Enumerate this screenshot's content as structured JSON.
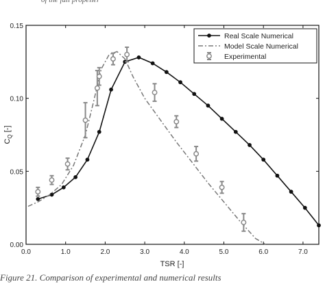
{
  "chart_data": {
    "type": "line",
    "xlabel": "TSR [-]",
    "ylabel_main": "C",
    "ylabel_sub": "Q",
    "ylabel_unit": " [-]",
    "xlim": [
      0,
      7.4
    ],
    "ylim": [
      0,
      0.15
    ],
    "xticks": [
      0.0,
      1.0,
      2.0,
      3.0,
      4.0,
      5.0,
      6.0,
      7.0
    ],
    "xtick_labels": [
      "0.0",
      "1.0",
      "2.0",
      "3.0",
      "4.0",
      "5.0",
      "6.0",
      "7.0"
    ],
    "yticks": [
      0.0,
      0.05,
      0.1,
      0.15
    ],
    "ytick_labels": [
      "0.00",
      "0.05",
      "0.10",
      "0.15"
    ],
    "grid": false,
    "legend_position": "top-right",
    "series": [
      {
        "name": "Real Scale Numerical",
        "style": "solid-marker",
        "color": "#111111",
        "x": [
          0.3,
          0.65,
          0.95,
          1.25,
          1.55,
          1.85,
          2.15,
          2.5,
          2.85,
          3.2,
          3.55,
          3.9,
          4.25,
          4.6,
          4.95,
          5.3,
          5.65,
          6.0,
          6.35,
          6.7,
          7.05,
          7.4
        ],
        "y": [
          0.031,
          0.034,
          0.039,
          0.046,
          0.058,
          0.077,
          0.106,
          0.125,
          0.128,
          0.124,
          0.118,
          0.111,
          0.103,
          0.095,
          0.086,
          0.077,
          0.068,
          0.058,
          0.047,
          0.036,
          0.025,
          0.013
        ]
      },
      {
        "name": "Model Scale Numerical",
        "style": "dash-dot",
        "color": "#777777",
        "x": [
          0.05,
          0.3,
          0.6,
          0.9,
          1.2,
          1.5,
          1.7,
          1.9,
          2.1,
          2.3,
          2.5,
          2.7,
          3.0,
          3.4,
          3.8,
          4.2,
          4.6,
          5.0,
          5.4,
          5.8,
          6.05
        ],
        "y": [
          0.026,
          0.029,
          0.034,
          0.041,
          0.054,
          0.075,
          0.097,
          0.12,
          0.13,
          0.132,
          0.127,
          0.115,
          0.1,
          0.085,
          0.07,
          0.056,
          0.042,
          0.029,
          0.016,
          0.004,
          0.0
        ]
      },
      {
        "name": "Experimental",
        "style": "circle-errorbar",
        "color": "#888888",
        "x": [
          0.3,
          0.65,
          1.05,
          1.5,
          1.8,
          1.85,
          2.2,
          2.55,
          3.25,
          3.8,
          4.3,
          4.95,
          5.5
        ],
        "y": [
          0.036,
          0.044,
          0.055,
          0.085,
          0.107,
          0.115,
          0.127,
          0.13,
          0.104,
          0.084,
          0.062,
          0.039,
          0.015
        ],
        "err": [
          0.003,
          0.003,
          0.004,
          0.012,
          0.012,
          0.006,
          0.004,
          0.005,
          0.006,
          0.004,
          0.005,
          0.004,
          0.006
        ]
      }
    ]
  },
  "caption_top": "of the full propeller",
  "caption_bottom": "Figure 21. Comparison of experimental and numerical results"
}
